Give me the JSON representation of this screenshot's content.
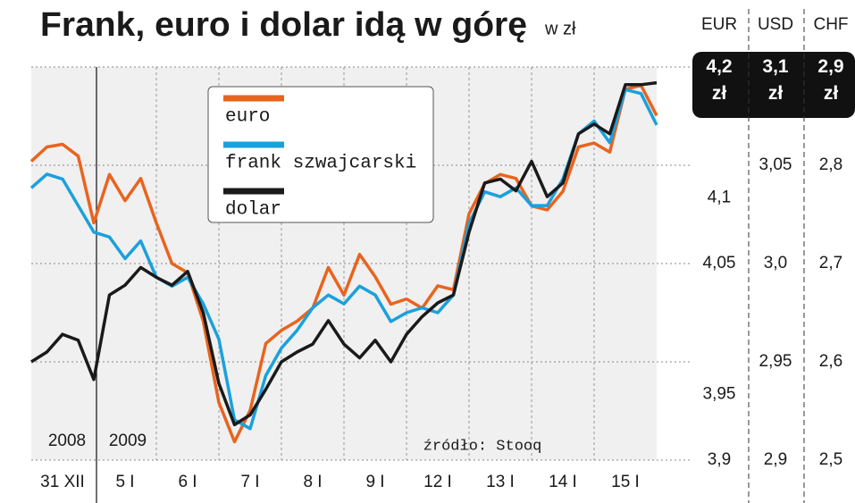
{
  "chart_data": {
    "type": "line",
    "title": "Frank, euro i dolar idą w górę",
    "subtitle": "w zł",
    "source": "źródło: Stooq",
    "annotations": [
      "2008",
      "2009"
    ],
    "xlim": [
      0,
      10
    ],
    "xticks": [
      {
        "value": 0.5,
        "label": "31 XII"
      },
      {
        "value": 1.5,
        "label": "5 I"
      },
      {
        "value": 2.5,
        "label": "6 I"
      },
      {
        "value": 3.5,
        "label": "7 I"
      },
      {
        "value": 4.5,
        "label": "8 I"
      },
      {
        "value": 5.5,
        "label": "9 I"
      },
      {
        "value": 6.5,
        "label": "12 I"
      },
      {
        "value": 7.5,
        "label": "13 I"
      },
      {
        "value": 8.5,
        "label": "14 I"
      },
      {
        "value": 9.5,
        "label": "15 I"
      }
    ],
    "x": [
      0,
      0.25,
      0.5,
      0.75,
      1,
      1.25,
      1.5,
      1.75,
      2,
      2.25,
      2.5,
      2.75,
      3,
      3.25,
      3.5,
      3.75,
      4,
      4.25,
      4.5,
      4.75,
      5,
      5.25,
      5.5,
      5.75,
      6,
      6.25,
      6.5,
      6.75,
      7,
      7.25,
      7.5,
      7.75,
      8,
      8.25,
      8.5,
      8.75,
      9,
      9.25,
      9.5,
      9.75,
      10
    ],
    "y_axes": [
      {
        "label": "EUR",
        "ylim": [
          3.9,
          4.2
        ],
        "yticks": [
          {
            "value": 4.2,
            "label": "4,2 zł"
          },
          {
            "value": 4.1,
            "label": "4,1"
          },
          {
            "value": 4.05,
            "label": "4,05"
          },
          {
            "value": 3.95,
            "label": "3,95"
          },
          {
            "value": 3.9,
            "label": "3,9"
          }
        ]
      },
      {
        "label": "USD",
        "ylim": [
          2.9,
          3.1
        ],
        "yticks": [
          {
            "value": 3.1,
            "label": "3,1 zł"
          },
          {
            "value": 3.05,
            "label": "3,05"
          },
          {
            "value": 3.0,
            "label": "3,0"
          },
          {
            "value": 2.95,
            "label": "2,95"
          },
          {
            "value": 2.9,
            "label": "2,9"
          }
        ]
      },
      {
        "label": "CHF",
        "ylim": [
          2.5,
          2.9
        ],
        "yticks": [
          {
            "value": 2.9,
            "label": "2,9 zł"
          },
          {
            "value": 2.8,
            "label": "2,8"
          },
          {
            "value": 2.7,
            "label": "2,7"
          },
          {
            "value": 2.6,
            "label": "2,6"
          },
          {
            "value": 2.5,
            "label": "2,5"
          }
        ]
      }
    ],
    "series": [
      {
        "name": "euro",
        "color": "#e8641e",
        "axis": 0,
        "values": [
          4.128,
          4.139,
          4.141,
          4.132,
          4.081,
          4.118,
          4.098,
          4.115,
          4.081,
          4.05,
          4.043,
          4.006,
          3.944,
          3.914,
          3.938,
          3.989,
          3.999,
          4.006,
          4.016,
          4.047,
          4.026,
          4.057,
          4.04,
          4.019,
          4.023,
          4.016,
          4.033,
          4.03,
          4.088,
          4.111,
          4.118,
          4.115,
          4.094,
          4.091,
          4.105,
          4.139,
          4.142,
          4.135,
          4.183,
          4.186,
          4.163
        ]
      },
      {
        "name": "frank szwajcarski",
        "color": "#1ba0dc",
        "axis": 2,
        "values": [
          2.777,
          2.791,
          2.786,
          2.759,
          2.732,
          2.727,
          2.705,
          2.723,
          2.686,
          2.677,
          2.686,
          2.659,
          2.623,
          2.541,
          2.532,
          2.586,
          2.614,
          2.632,
          2.655,
          2.668,
          2.659,
          2.677,
          2.668,
          2.641,
          2.65,
          2.655,
          2.65,
          2.668,
          2.741,
          2.773,
          2.768,
          2.777,
          2.759,
          2.759,
          2.786,
          2.832,
          2.845,
          2.823,
          2.877,
          2.873,
          2.841
        ]
      },
      {
        "name": "dolar",
        "color": "#1a1a1a",
        "axis": 1,
        "values": [
          2.95,
          2.955,
          2.964,
          2.961,
          2.941,
          2.984,
          2.989,
          2.998,
          2.993,
          2.989,
          2.996,
          2.975,
          2.939,
          2.918,
          2.923,
          2.936,
          2.95,
          2.955,
          2.959,
          2.971,
          2.959,
          2.952,
          2.961,
          2.95,
          2.964,
          2.973,
          2.98,
          2.984,
          3.016,
          3.041,
          3.043,
          3.037,
          3.052,
          3.034,
          3.041,
          3.066,
          3.071,
          3.066,
          3.091,
          3.091,
          3.092
        ]
      }
    ],
    "grid": true
  }
}
